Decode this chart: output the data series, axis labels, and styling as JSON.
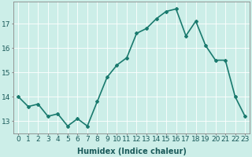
{
  "x": [
    0,
    1,
    2,
    3,
    4,
    5,
    6,
    7,
    8,
    9,
    10,
    11,
    12,
    13,
    14,
    15,
    16,
    17,
    18,
    19,
    20,
    21,
    22,
    23
  ],
  "y": [
    14.0,
    13.6,
    13.7,
    13.2,
    13.3,
    12.8,
    13.1,
    12.8,
    13.8,
    14.8,
    15.3,
    15.6,
    16.6,
    16.8,
    17.2,
    17.5,
    17.6,
    16.5,
    17.1,
    16.1,
    15.5,
    15.5,
    14.0,
    13.2
  ],
  "line_color": "#1a7a6e",
  "marker": "D",
  "marker_size": 2.0,
  "bg_color": "#cceee8",
  "grid_color": "#ffffff",
  "xlabel": "Humidex (Indice chaleur)",
  "xlabel_fontsize": 7,
  "ylabel_ticks": [
    13,
    14,
    15,
    16,
    17
  ],
  "ylim": [
    12.5,
    17.9
  ],
  "xlim": [
    -0.5,
    23.5
  ],
  "tick_fontsize": 6.5,
  "linewidth": 1.2
}
